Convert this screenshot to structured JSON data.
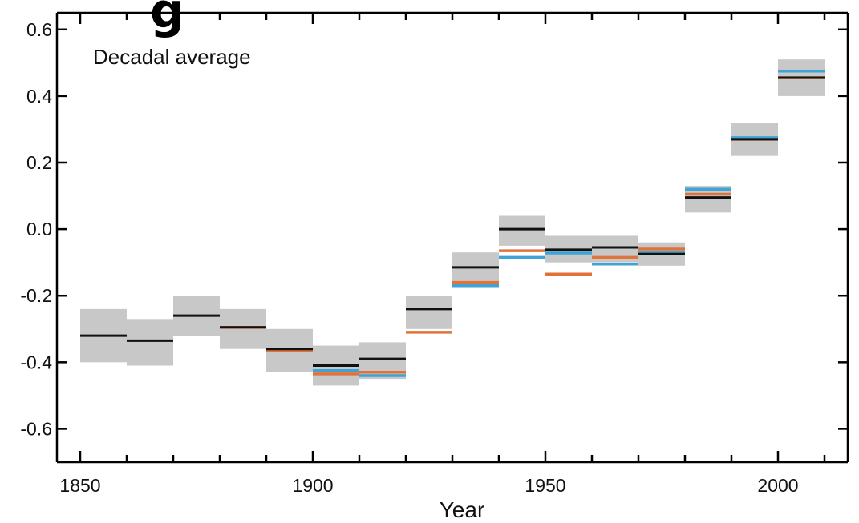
{
  "chart_data": {
    "type": "box",
    "title": "",
    "clipped_heading": "g",
    "annotation": "Decadal average",
    "xlabel": "Year",
    "ylabel": "",
    "xlim": [
      1845,
      2015
    ],
    "ylim": [
      -0.7,
      0.65
    ],
    "x_ticks": [
      1850,
      1900,
      1950,
      2000
    ],
    "x_minor_step": 10,
    "y_ticks": [
      -0.6,
      -0.4,
      -0.2,
      0.0,
      0.2,
      0.4,
      0.6
    ],
    "y_tick_labels": [
      "-0.6",
      "-0.4",
      "-0.2",
      "0.0",
      "0.2",
      "0.4",
      "0.6"
    ],
    "grid": false,
    "legend": "none",
    "colors": {
      "band": "#c8c8c8",
      "black_series": "#111111",
      "orange_series": "#e0733a",
      "blue_series": "#3fa3d6",
      "axis": "#000000"
    },
    "decades": [
      {
        "start": 1850,
        "end": 1860,
        "low": -0.4,
        "high": -0.24,
        "black": -0.32,
        "orange": null,
        "blue": null
      },
      {
        "start": 1860,
        "end": 1870,
        "low": -0.41,
        "high": -0.27,
        "black": -0.335,
        "orange": null,
        "blue": null
      },
      {
        "start": 1870,
        "end": 1880,
        "low": -0.32,
        "high": -0.2,
        "black": -0.26,
        "orange": null,
        "blue": null
      },
      {
        "start": 1880,
        "end": 1890,
        "low": -0.36,
        "high": -0.24,
        "black": -0.295,
        "orange": -0.295,
        "blue": null
      },
      {
        "start": 1890,
        "end": 1900,
        "low": -0.43,
        "high": -0.3,
        "black": -0.36,
        "orange": -0.365,
        "blue": null
      },
      {
        "start": 1900,
        "end": 1910,
        "low": -0.47,
        "high": -0.35,
        "black": -0.41,
        "orange": -0.435,
        "blue": -0.425
      },
      {
        "start": 1910,
        "end": 1920,
        "low": -0.45,
        "high": -0.34,
        "black": -0.39,
        "orange": -0.43,
        "blue": -0.44
      },
      {
        "start": 1920,
        "end": 1930,
        "low": -0.3,
        "high": -0.2,
        "black": -0.24,
        "orange": -0.31,
        "blue": null
      },
      {
        "start": 1930,
        "end": 1940,
        "low": -0.17,
        "high": -0.07,
        "black": -0.115,
        "orange": -0.16,
        "blue": -0.17
      },
      {
        "start": 1940,
        "end": 1950,
        "low": -0.05,
        "high": 0.04,
        "black": 0.0,
        "orange": -0.065,
        "blue": -0.085
      },
      {
        "start": 1950,
        "end": 1960,
        "low": -0.1,
        "high": -0.02,
        "black": -0.062,
        "orange": -0.135,
        "blue": -0.072
      },
      {
        "start": 1960,
        "end": 1970,
        "low": -0.1,
        "high": -0.02,
        "black": -0.055,
        "orange": -0.085,
        "blue": -0.105
      },
      {
        "start": 1970,
        "end": 1980,
        "low": -0.11,
        "high": -0.04,
        "black": -0.075,
        "orange": -0.06,
        "blue": -0.07
      },
      {
        "start": 1980,
        "end": 1990,
        "low": 0.05,
        "high": 0.13,
        "black": 0.095,
        "orange": 0.105,
        "blue": 0.12
      },
      {
        "start": 1990,
        "end": 2000,
        "low": 0.22,
        "high": 0.32,
        "black": 0.27,
        "orange": 0.27,
        "blue": 0.275
      },
      {
        "start": 2000,
        "end": 2010,
        "low": 0.4,
        "high": 0.51,
        "black": 0.455,
        "orange": 0.455,
        "blue": 0.475
      }
    ]
  }
}
